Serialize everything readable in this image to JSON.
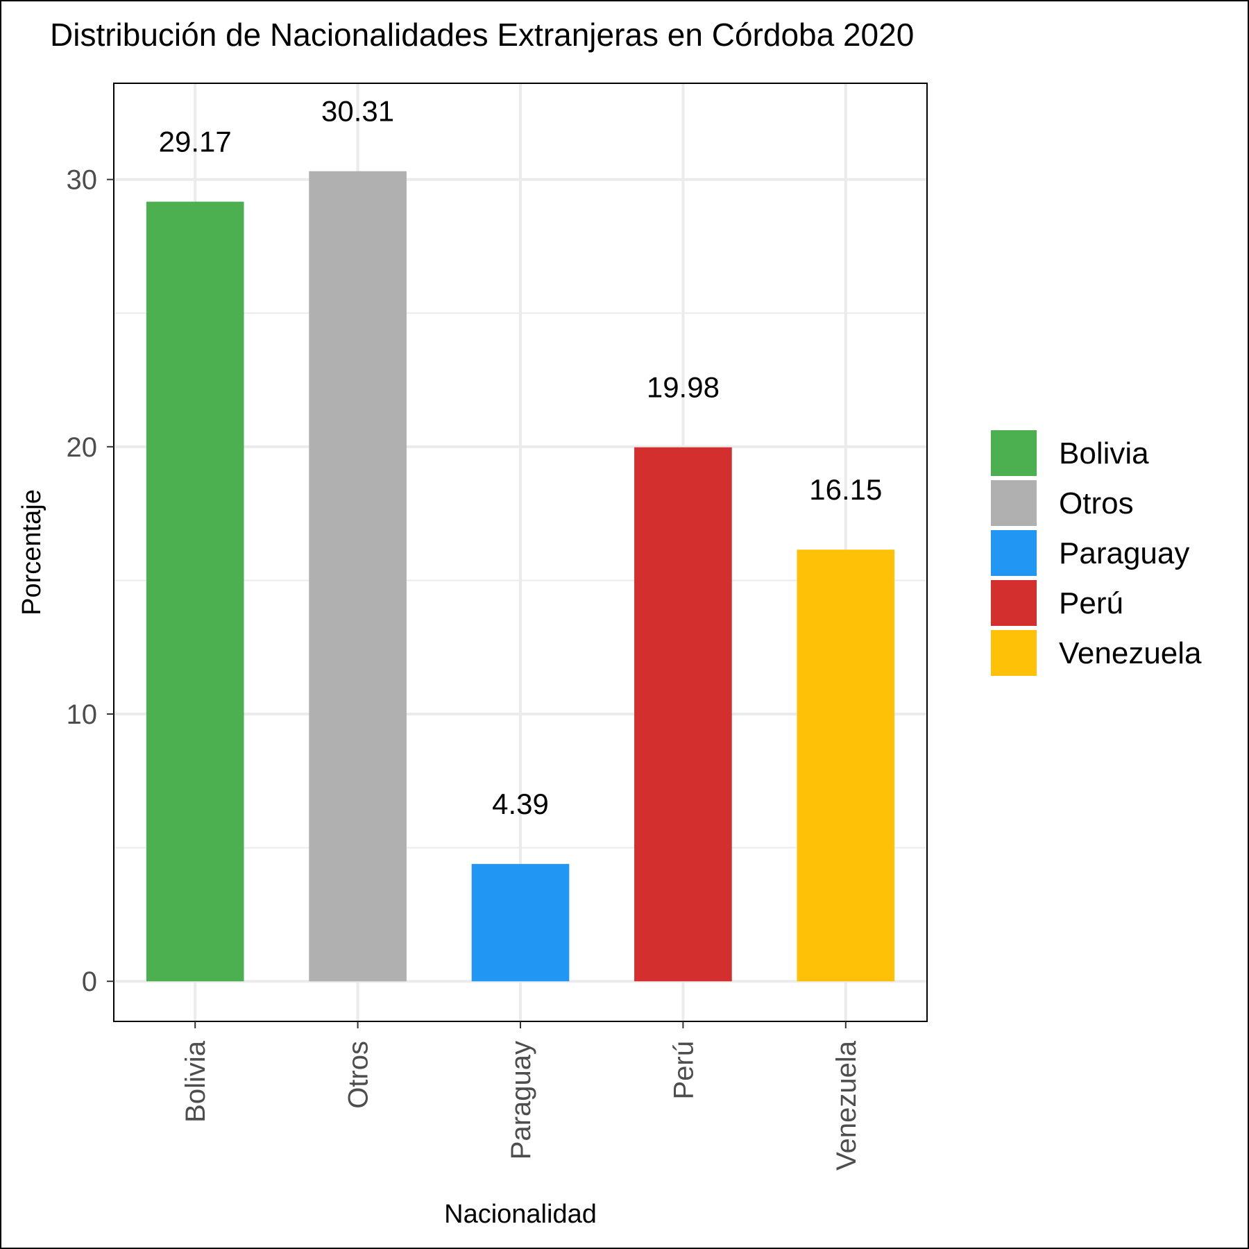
{
  "chart_data": {
    "type": "bar",
    "title": "Distribución de Nacionalidades Extranjeras en Córdoba 2020",
    "xlabel": "Nacionalidad",
    "ylabel": "Porcentaje",
    "categories": [
      "Bolivia",
      "Otros",
      "Paraguay",
      "Perú",
      "Venezuela"
    ],
    "values": [
      29.17,
      30.31,
      4.39,
      19.98,
      16.15
    ],
    "value_labels": [
      "29.17",
      "30.31",
      "4.39",
      "19.98",
      "16.15"
    ],
    "colors": [
      "#4caf50",
      "#b0b0b0",
      "#2196f3",
      "#d32f2f",
      "#ffc107"
    ],
    "yticks": [
      0,
      10,
      20,
      30
    ],
    "ylim": [
      -1.5,
      33.6
    ],
    "grid": true,
    "legend": {
      "placement": "right",
      "entries": [
        "Bolivia",
        "Otros",
        "Paraguay",
        "Perú",
        "Venezuela"
      ]
    }
  }
}
